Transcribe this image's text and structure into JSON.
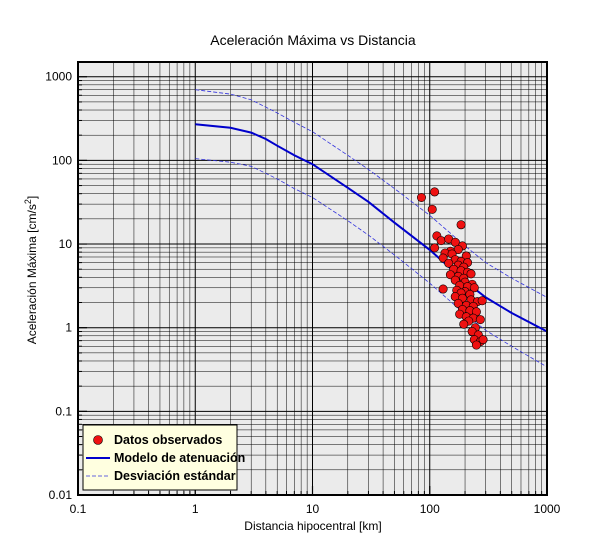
{
  "chart_data": {
    "type": "scatter",
    "title": "Aceleración Máxima vs Distancia",
    "xlabel": "Distancia hipocentral [km]",
    "ylabel_main": "Aceleración Máxima [cm/s",
    "ylabel_sup": "2",
    "ylabel_end": "]",
    "xscale": "log",
    "yscale": "log",
    "xlim": [
      0.1,
      1000
    ],
    "ylim": [
      0.01,
      1500
    ],
    "grid": true,
    "legend_position": "bottom-left",
    "x_ticks": [
      {
        "value": 0.1,
        "label": "0.1"
      },
      {
        "value": 1,
        "label": "1"
      },
      {
        "value": 10,
        "label": "10"
      },
      {
        "value": 100,
        "label": "100"
      },
      {
        "value": 1000,
        "label": "1000"
      }
    ],
    "y_ticks": [
      {
        "value": 0.01,
        "label": "0.01"
      },
      {
        "value": 0.1,
        "label": "0.1"
      },
      {
        "value": 1,
        "label": "1"
      },
      {
        "value": 10,
        "label": "10"
      },
      {
        "value": 100,
        "label": "100"
      },
      {
        "value": 1000,
        "label": "1000"
      }
    ],
    "legend": {
      "observed": "Datos observados",
      "model": "Modelo de atenuación",
      "deviation": "Desviación estándar"
    },
    "colors": {
      "observed": "#ee1111",
      "model": "#0000cc",
      "deviation": "#3333dd",
      "plot_bg": "#ebebeb",
      "legend_bg": "#ffffe0"
    },
    "series": [
      {
        "name": "Modelo de atenuación",
        "style": "solid",
        "x": [
          1,
          2,
          3,
          4,
          5,
          7,
          10,
          20,
          30,
          50,
          100,
          200,
          300,
          500,
          1000
        ],
        "y": [
          270,
          245,
          215,
          180,
          150,
          115,
          90,
          47,
          32,
          18,
          8.5,
          3.6,
          2.3,
          1.5,
          0.9
        ]
      },
      {
        "name": "Desviación estándar",
        "style": "dashed",
        "x": [
          1,
          2,
          3,
          5,
          7,
          10,
          20,
          30,
          50,
          100,
          200,
          300,
          500,
          1000
        ],
        "y": [
          700,
          620,
          530,
          370,
          285,
          220,
          115,
          78,
          46,
          22,
          9.5,
          6,
          3.9,
          2.3
        ]
      },
      {
        "name": "Desviación estándar",
        "style": "dashed",
        "x": [
          1,
          2,
          3,
          5,
          7,
          10,
          20,
          30,
          50,
          100,
          200,
          300,
          500,
          1000
        ],
        "y": [
          105,
          95,
          85,
          60,
          46,
          36,
          19,
          12.8,
          7.4,
          3.4,
          1.45,
          0.93,
          0.6,
          0.34
        ]
      },
      {
        "name": "Datos observados",
        "style": "markers",
        "points": [
          [
            85,
            36
          ],
          [
            110,
            42
          ],
          [
            105,
            26
          ],
          [
            185,
            17
          ],
          [
            115,
            12.5
          ],
          [
            125,
            11
          ],
          [
            110,
            9
          ],
          [
            145,
            11.5
          ],
          [
            165,
            10.5
          ],
          [
            190,
            9.5
          ],
          [
            175,
            8.6
          ],
          [
            150,
            8.2
          ],
          [
            135,
            7.8
          ],
          [
            155,
            7.6
          ],
          [
            205,
            7.2
          ],
          [
            130,
            6.8
          ],
          [
            165,
            6.5
          ],
          [
            185,
            6.2
          ],
          [
            210,
            6.0
          ],
          [
            145,
            5.9
          ],
          [
            175,
            5.6
          ],
          [
            195,
            5.3
          ],
          [
            160,
            5.0
          ],
          [
            185,
            4.8
          ],
          [
            210,
            4.6
          ],
          [
            225,
            4.4
          ],
          [
            150,
            4.3
          ],
          [
            175,
            4.1
          ],
          [
            195,
            3.9
          ],
          [
            165,
            3.7
          ],
          [
            200,
            3.5
          ],
          [
            230,
            3.3
          ],
          [
            180,
            3.2
          ],
          [
            210,
            3.1
          ],
          [
            240,
            3.0
          ],
          [
            130,
            2.9
          ],
          [
            170,
            2.8
          ],
          [
            200,
            2.7
          ],
          [
            185,
            2.6
          ],
          [
            220,
            2.5
          ],
          [
            165,
            2.35
          ],
          [
            190,
            2.25
          ],
          [
            225,
            2.15
          ],
          [
            255,
            2.05
          ],
          [
            280,
            2.1
          ],
          [
            175,
            1.95
          ],
          [
            205,
            1.85
          ],
          [
            235,
            1.8
          ],
          [
            190,
            1.65
          ],
          [
            220,
            1.6
          ],
          [
            250,
            1.55
          ],
          [
            180,
            1.45
          ],
          [
            205,
            1.35
          ],
          [
            235,
            1.3
          ],
          [
            270,
            1.25
          ],
          [
            215,
            1.2
          ],
          [
            195,
            1.1
          ],
          [
            245,
            1.0
          ],
          [
            230,
            0.9
          ],
          [
            260,
            0.82
          ],
          [
            240,
            0.72
          ],
          [
            270,
            0.68
          ],
          [
            285,
            0.72
          ],
          [
            250,
            0.62
          ]
        ]
      }
    ]
  }
}
